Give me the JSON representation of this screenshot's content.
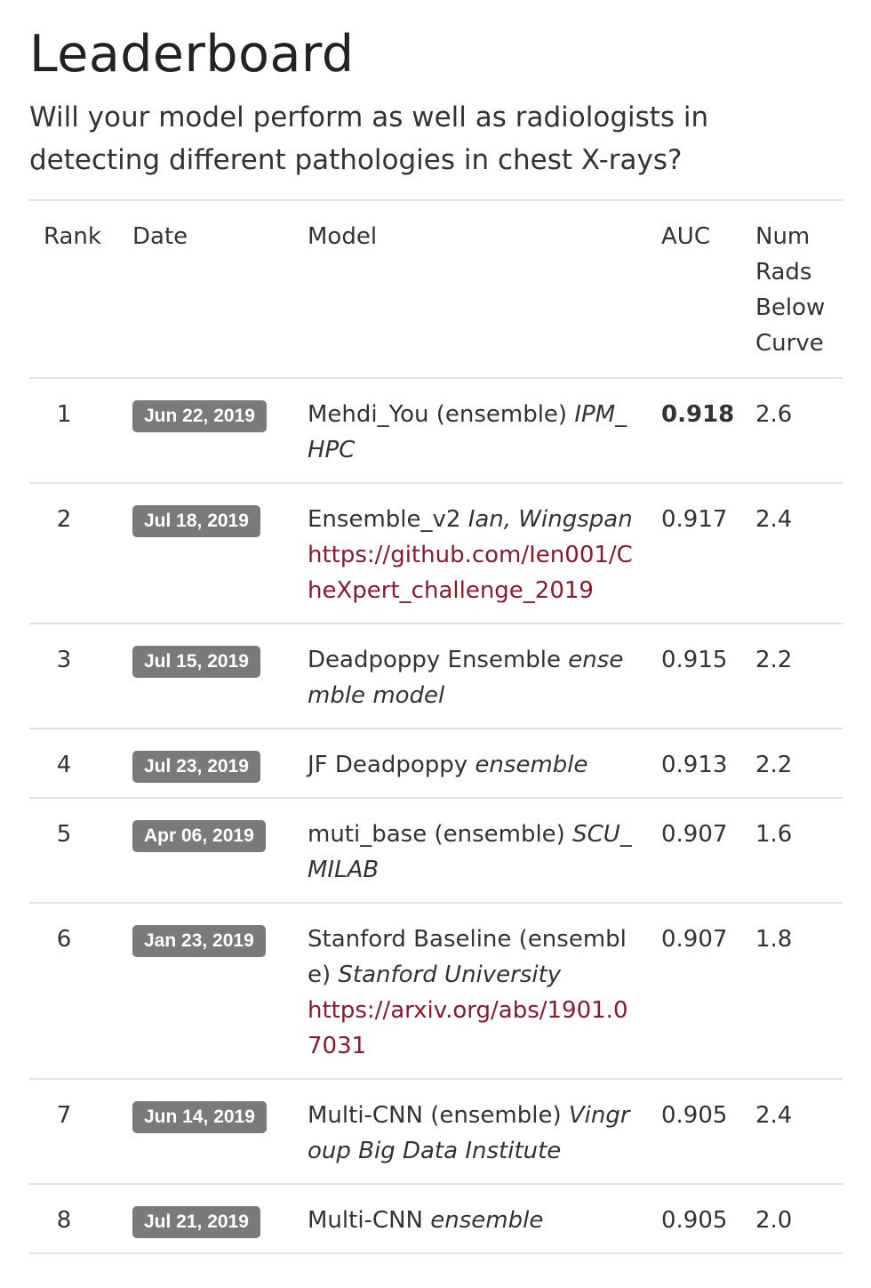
{
  "header": {
    "title": "Leaderboard",
    "subtitle": "Will your model perform as well as radiologists in detecting different pathologies in chest X-rays?"
  },
  "table": {
    "columns": {
      "rank": "Rank",
      "date": "Date",
      "model": "Model",
      "auc": "AUC",
      "rads": "Num Rads Below Curve"
    },
    "rows": [
      {
        "rank": "1",
        "date": "Jun 22, 2019",
        "model": "Mehdi_You (ensemble)",
        "affiliation": "IPM_HPC",
        "link": "",
        "auc": "0.918",
        "rads": "2.6"
      },
      {
        "rank": "2",
        "date": "Jul 18, 2019",
        "model": "Ensemble_v2",
        "affiliation": "Ian, Wingspan",
        "link": "https://github.com/Ien001/CheXpert_challenge_2019",
        "auc": "0.917",
        "rads": "2.4"
      },
      {
        "rank": "3",
        "date": "Jul 15, 2019",
        "model": "Deadpoppy Ensemble",
        "affiliation": "ensemble model",
        "link": "",
        "auc": "0.915",
        "rads": "2.2"
      },
      {
        "rank": "4",
        "date": "Jul 23, 2019",
        "model": "JF Deadpoppy",
        "affiliation": "ensemble",
        "link": "",
        "auc": "0.913",
        "rads": "2.2"
      },
      {
        "rank": "5",
        "date": "Apr 06, 2019",
        "model": "muti_base (ensemble)",
        "affiliation": "SCU_MILAB",
        "link": "",
        "auc": "0.907",
        "rads": "1.6"
      },
      {
        "rank": "6",
        "date": "Jan 23, 2019",
        "model": "Stanford Baseline (ensemble)",
        "affiliation": "Stanford University",
        "link": "https://arxiv.org/abs/1901.07031",
        "auc": "0.907",
        "rads": "1.8"
      },
      {
        "rank": "7",
        "date": "Jun 14, 2019",
        "model": "Multi-CNN (ensemble)",
        "affiliation": "Vingroup Big Data Institute",
        "link": "",
        "auc": "0.905",
        "rads": "2.4"
      },
      {
        "rank": "8",
        "date": "Jul 21, 2019",
        "model": "Multi-CNN",
        "affiliation": "ensemble",
        "link": "",
        "auc": "0.905",
        "rads": "2.0"
      }
    ]
  },
  "colors": {
    "badge": "#7a7a7a",
    "link": "#8b1a2b",
    "divider": "#e2e2e2"
  }
}
